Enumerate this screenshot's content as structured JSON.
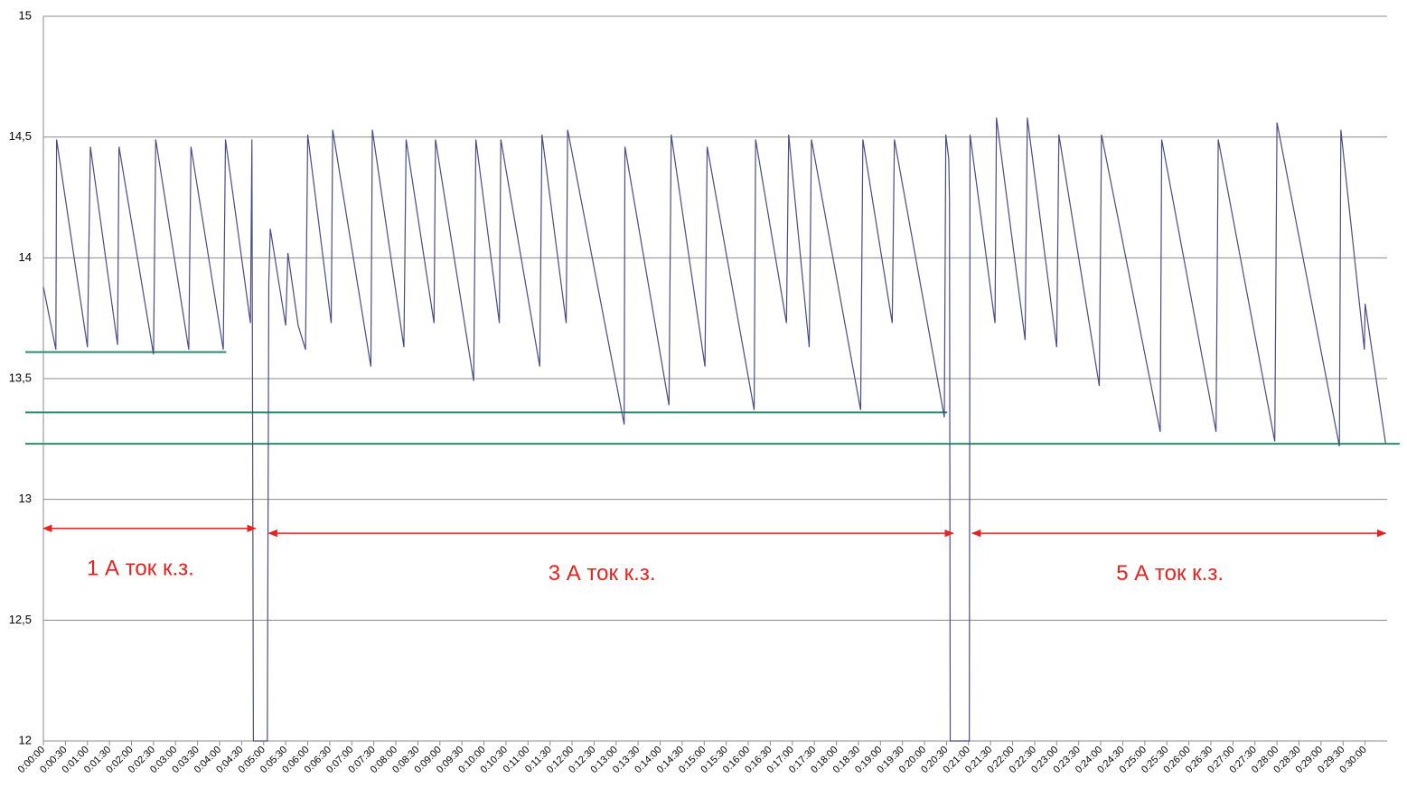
{
  "chart_data": {
    "type": "line",
    "x": [
      0,
      17,
      18,
      60,
      64,
      101,
      103,
      150,
      153,
      198,
      201,
      245,
      248,
      282,
      284,
      286,
      305,
      307,
      309,
      330,
      333,
      347,
      357,
      360,
      392,
      394,
      446,
      448,
      491,
      494,
      532,
      534,
      586,
      589,
      621,
      623,
      676,
      679,
      712,
      714,
      791,
      792,
      852,
      855,
      901,
      904,
      968,
      970,
      1012,
      1015,
      1043,
      1046,
      1113,
      1116,
      1156,
      1159,
      1227,
      1229,
      1233,
      1234,
      1235,
      1261,
      1262,
      1296,
      1298,
      1337,
      1340,
      1380,
      1383,
      1438,
      1441,
      1521,
      1523,
      1597,
      1600,
      1677,
      1680,
      1765,
      1767,
      1799,
      1800,
      1828
    ],
    "series": [
      {
        "color": "#4a4a8a",
        "values": [
          13.88,
          13.62,
          14.49,
          13.63,
          14.46,
          13.64,
          14.46,
          13.6,
          14.49,
          13.62,
          14.46,
          13.62,
          14.49,
          13.73,
          14.49,
          12,
          12,
          13.9,
          14.12,
          13.72,
          14.02,
          13.72,
          13.62,
          14.51,
          13.73,
          14.53,
          13.55,
          14.53,
          13.63,
          14.49,
          13.73,
          14.49,
          13.49,
          14.49,
          13.73,
          14.49,
          13.55,
          14.51,
          13.73,
          14.53,
          13.31,
          14.46,
          13.39,
          14.51,
          13.55,
          14.46,
          13.37,
          14.49,
          13.73,
          14.51,
          13.63,
          14.49,
          13.37,
          14.49,
          13.73,
          14.49,
          13.34,
          14.51,
          14.41,
          14.24,
          12,
          12,
          14.51,
          13.73,
          14.58,
          13.66,
          14.58,
          13.63,
          14.51,
          13.47,
          14.51,
          13.28,
          14.49,
          13.28,
          14.49,
          13.24,
          14.56,
          13.22,
          14.53,
          13.62,
          13.81,
          13.23
        ]
      }
    ],
    "xlim": [
      0,
      1830
    ],
    "ylim": [
      12,
      15
    ],
    "yticks": [
      12,
      {
        "value": 12.5,
        "label": "12,5"
      },
      13,
      {
        "value": 13.5,
        "label": "13,5"
      },
      14,
      {
        "value": 14.5,
        "label": "14,5"
      },
      15
    ],
    "xticks": [
      {
        "value": 0,
        "label": "0:00:00"
      },
      {
        "value": 30,
        "label": "0:00:30"
      },
      {
        "value": 60,
        "label": "0:01:00"
      },
      {
        "value": 90,
        "label": "0:01:30"
      },
      {
        "value": 120,
        "label": "0:02:00"
      },
      {
        "value": 150,
        "label": "0:02:30"
      },
      {
        "value": 180,
        "label": "0:03:00"
      },
      {
        "value": 210,
        "label": "0:03:30"
      },
      {
        "value": 240,
        "label": "0:04:00"
      },
      {
        "value": 270,
        "label": "0:04:30"
      },
      {
        "value": 300,
        "label": "0:05:00"
      },
      {
        "value": 330,
        "label": "0:05:30"
      },
      {
        "value": 360,
        "label": "0:06:00"
      },
      {
        "value": 390,
        "label": "0:06:30"
      },
      {
        "value": 420,
        "label": "0:07:00"
      },
      {
        "value": 450,
        "label": "0:07:30"
      },
      {
        "value": 480,
        "label": "0:08:00"
      },
      {
        "value": 510,
        "label": "0:08:30"
      },
      {
        "value": 540,
        "label": "0:09:00"
      },
      {
        "value": 570,
        "label": "0:09:30"
      },
      {
        "value": 600,
        "label": "0:10:00"
      },
      {
        "value": 630,
        "label": "0:10:30"
      },
      {
        "value": 660,
        "label": "0:11:00"
      },
      {
        "value": 690,
        "label": "0:11:30"
      },
      {
        "value": 720,
        "label": "0:12:00"
      },
      {
        "value": 750,
        "label": "0:12:30"
      },
      {
        "value": 780,
        "label": "0:13:00"
      },
      {
        "value": 810,
        "label": "0:13:30"
      },
      {
        "value": 840,
        "label": "0:14:00"
      },
      {
        "value": 870,
        "label": "0:14:30"
      },
      {
        "value": 900,
        "label": "0:15:00"
      },
      {
        "value": 930,
        "label": "0:15:30"
      },
      {
        "value": 960,
        "label": "0:16:00"
      },
      {
        "value": 990,
        "label": "0:16:30"
      },
      {
        "value": 1020,
        "label": "0:17:00"
      },
      {
        "value": 1050,
        "label": "0:17:30"
      },
      {
        "value": 1080,
        "label": "0:18:00"
      },
      {
        "value": 1110,
        "label": "0:18:30"
      },
      {
        "value": 1140,
        "label": "0:19:00"
      },
      {
        "value": 1170,
        "label": "0:19:30"
      },
      {
        "value": 1200,
        "label": "0:20:00"
      },
      {
        "value": 1230,
        "label": "0:20:30"
      },
      {
        "value": 1260,
        "label": "0:21:00"
      },
      {
        "value": 1290,
        "label": "0:21:30"
      },
      {
        "value": 1320,
        "label": "0:22:00"
      },
      {
        "value": 1350,
        "label": "0:22:30"
      },
      {
        "value": 1380,
        "label": "0:23:00"
      },
      {
        "value": 1410,
        "label": "0:23:30"
      },
      {
        "value": 1440,
        "label": "0:24:00"
      },
      {
        "value": 1470,
        "label": "0:24:30"
      },
      {
        "value": 1500,
        "label": "0:25:00"
      },
      {
        "value": 1530,
        "label": "0:25:30"
      },
      {
        "value": 1560,
        "label": "0:26:00"
      },
      {
        "value": 1590,
        "label": "0:26:30"
      },
      {
        "value": 1620,
        "label": "0:27:00"
      },
      {
        "value": 1650,
        "label": "0:27:30"
      },
      {
        "value": 1680,
        "label": "0:28:00"
      },
      {
        "value": 1710,
        "label": "0:28:30"
      },
      {
        "value": 1740,
        "label": "0:29:00"
      },
      {
        "value": 1770,
        "label": "0:29:30"
      },
      {
        "value": 1800,
        "label": "0:30:00"
      }
    ],
    "grid": true,
    "reference_lines": [
      {
        "y": 13.61,
        "x": [
          0,
          249
        ],
        "color": "#2e8b6e"
      },
      {
        "y": 13.36,
        "x": [
          0,
          1231
        ],
        "color": "#2e8b6e"
      },
      {
        "y": 13.23,
        "x": [
          0,
          1847
        ],
        "color": "#2e8b6e"
      }
    ],
    "annotations": [
      {
        "text": "1 А ток к.з.",
        "x": [
          0,
          289
        ],
        "y": 12.88,
        "color": "#e8231f"
      },
      {
        "text": "3 А ток к.з.",
        "x": [
          307,
          1239
        ],
        "y": 12.86,
        "color": "#e8231f"
      },
      {
        "text": "5 А ток к.з.",
        "x": [
          1265,
          1828
        ],
        "y": 12.86,
        "color": "#e8231f"
      }
    ]
  }
}
